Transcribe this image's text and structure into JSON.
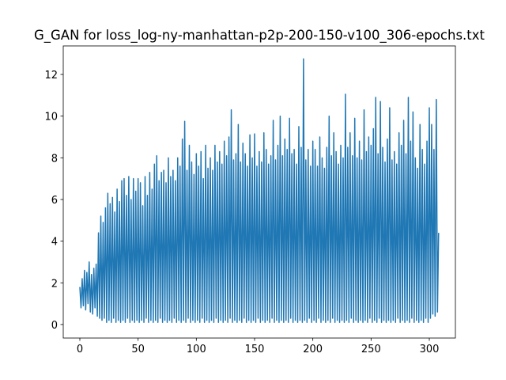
{
  "chart_data": {
    "type": "line",
    "title": "G_GAN for loss_log-ny-manhattan-p2p-200-150-v100_306-epochs.txt",
    "x": [
      0,
      1,
      2,
      3,
      4,
      5,
      6,
      7,
      8,
      9,
      10,
      11,
      12,
      13,
      14,
      15,
      16,
      17,
      18,
      19,
      20,
      21,
      22,
      23,
      24,
      25,
      26,
      27,
      28,
      29,
      30,
      31,
      32,
      33,
      34,
      35,
      36,
      37,
      38,
      39,
      40,
      41,
      42,
      43,
      44,
      45,
      46,
      47,
      48,
      49,
      50,
      51,
      52,
      53,
      54,
      55,
      56,
      57,
      58,
      59,
      60,
      61,
      62,
      63,
      64,
      65,
      66,
      67,
      68,
      69,
      70,
      71,
      72,
      73,
      74,
      75,
      76,
      77,
      78,
      79,
      80,
      81,
      82,
      83,
      84,
      85,
      86,
      87,
      88,
      89,
      90,
      91,
      92,
      93,
      94,
      95,
      96,
      97,
      98,
      99,
      100,
      101,
      102,
      103,
      104,
      105,
      106,
      107,
      108,
      109,
      110,
      111,
      112,
      113,
      114,
      115,
      116,
      117,
      118,
      119,
      120,
      121,
      122,
      123,
      124,
      125,
      126,
      127,
      128,
      129,
      130,
      131,
      132,
      133,
      134,
      135,
      136,
      137,
      138,
      139,
      140,
      141,
      142,
      143,
      144,
      145,
      146,
      147,
      148,
      149,
      150,
      151,
      152,
      153,
      154,
      155,
      156,
      157,
      158,
      159,
      160,
      161,
      162,
      163,
      164,
      165,
      166,
      167,
      168,
      169,
      170,
      171,
      172,
      173,
      174,
      175,
      176,
      177,
      178,
      179,
      180,
      181,
      182,
      183,
      184,
      185,
      186,
      187,
      188,
      189,
      190,
      191,
      192,
      193,
      194,
      195,
      196,
      197,
      198,
      199,
      200,
      201,
      202,
      203,
      204,
      205,
      206,
      207,
      208,
      209,
      210,
      211,
      212,
      213,
      214,
      215,
      216,
      217,
      218,
      219,
      220,
      221,
      222,
      223,
      224,
      225,
      226,
      227,
      228,
      229,
      230,
      231,
      232,
      233,
      234,
      235,
      236,
      237,
      238,
      239,
      240,
      241,
      242,
      243,
      244,
      245,
      246,
      247,
      248,
      249,
      250,
      251,
      252,
      253,
      254,
      255,
      256,
      257,
      258,
      259,
      260,
      261,
      262,
      263,
      264,
      265,
      266,
      267,
      268,
      269,
      270,
      271,
      272,
      273,
      274,
      275,
      276,
      277,
      278,
      279,
      280,
      281,
      282,
      283,
      284,
      285,
      286,
      287,
      288,
      289,
      290,
      291,
      292,
      293,
      294,
      295,
      296,
      297,
      298,
      299,
      300,
      301,
      302,
      303,
      304,
      305,
      306,
      307,
      308
    ],
    "series": [
      {
        "color": "#1f77b4",
        "values": [
          1.8,
          0.8,
          2.2,
          0.9,
          2.6,
          0.7,
          2.5,
          1.0,
          3.0,
          0.6,
          2.4,
          0.5,
          2.7,
          0.8,
          2.9,
          0.4,
          4.4,
          0.3,
          5.2,
          0.2,
          4.9,
          0.3,
          5.6,
          0.1,
          6.3,
          0.2,
          5.8,
          0.1,
          6.1,
          0.3,
          5.4,
          0.1,
          6.5,
          0.2,
          5.9,
          0.1,
          6.9,
          0.2,
          7.0,
          0.1,
          6.2,
          0.3,
          7.1,
          0.1,
          6.0,
          0.2,
          7.0,
          0.1,
          6.4,
          0.2,
          7.0,
          0.1,
          6.8,
          0.2,
          5.7,
          0.1,
          7.1,
          0.3,
          6.2,
          0.1,
          7.3,
          0.2,
          6.5,
          0.1,
          7.7,
          0.2,
          8.1,
          0.1,
          6.9,
          0.3,
          7.3,
          0.1,
          7.4,
          0.2,
          6.8,
          0.1,
          8.0,
          0.2,
          7.1,
          0.1,
          7.4,
          0.3,
          6.9,
          0.1,
          8.0,
          0.2,
          7.6,
          0.1,
          8.9,
          0.2,
          9.75,
          0.1,
          7.4,
          0.3,
          8.6,
          0.1,
          7.8,
          0.2,
          7.2,
          0.1,
          8.2,
          0.2,
          7.6,
          0.1,
          8.3,
          0.3,
          7.0,
          0.1,
          8.6,
          0.2,
          7.5,
          0.1,
          8.0,
          0.2,
          7.4,
          0.1,
          8.6,
          0.3,
          7.8,
          0.1,
          8.3,
          0.2,
          7.7,
          0.1,
          8.8,
          0.2,
          8.1,
          0.1,
          9.0,
          0.3,
          10.3,
          0.1,
          7.9,
          0.2,
          8.2,
          0.1,
          9.6,
          0.2,
          7.8,
          0.1,
          8.7,
          0.3,
          8.2,
          0.1,
          7.6,
          0.2,
          9.1,
          0.1,
          8.0,
          0.2,
          9.15,
          0.1,
          7.6,
          0.3,
          8.3,
          0.1,
          7.8,
          0.2,
          9.2,
          0.1,
          8.4,
          0.2,
          7.7,
          0.1,
          8.1,
          0.3,
          9.8,
          0.1,
          7.9,
          0.2,
          8.6,
          0.1,
          10.0,
          0.2,
          8.1,
          0.1,
          8.9,
          0.2,
          8.4,
          0.1,
          9.9,
          0.3,
          8.2,
          0.1,
          8.4,
          0.2,
          7.7,
          0.1,
          9.5,
          0.2,
          8.5,
          0.1,
          12.75,
          0.2,
          7.9,
          0.1,
          8.4,
          0.3,
          7.6,
          0.1,
          8.8,
          0.2,
          8.4,
          0.1,
          7.6,
          0.3,
          9.0,
          0.1,
          8.0,
          0.2,
          7.5,
          0.1,
          8.5,
          0.2,
          10.0,
          0.1,
          8.1,
          0.3,
          9.2,
          0.1,
          8.3,
          0.2,
          7.7,
          0.1,
          8.6,
          0.2,
          8.0,
          0.1,
          11.05,
          0.2,
          8.5,
          0.1,
          9.2,
          0.3,
          8.1,
          0.1,
          9.9,
          0.2,
          8.0,
          0.1,
          8.8,
          0.2,
          7.9,
          0.1,
          10.3,
          0.2,
          8.3,
          0.1,
          9.0,
          0.3,
          8.6,
          0.1,
          9.4,
          0.2,
          10.9,
          0.1,
          8.2,
          0.3,
          10.7,
          0.1,
          8.5,
          0.2,
          7.8,
          0.1,
          8.9,
          0.2,
          10.4,
          0.1,
          7.9,
          0.2,
          8.3,
          0.1,
          7.7,
          0.3,
          9.2,
          0.1,
          8.6,
          0.2,
          9.8,
          0.1,
          8.2,
          0.2,
          10.9,
          0.1,
          8.8,
          0.3,
          10.2,
          0.1,
          8.0,
          0.2,
          7.5,
          0.1,
          9.6,
          0.2,
          8.4,
          0.1,
          7.7,
          0.3,
          8.8,
          0.1,
          10.4,
          0.3,
          9.6,
          0.5,
          8.4,
          0.4,
          10.8,
          0.6,
          4.4
        ]
      }
    ],
    "xlim": [
      -14.25,
      322.4
    ],
    "xticks": [
      0,
      50,
      100,
      150,
      200,
      250,
      300
    ],
    "ylim": [
      -0.65,
      13.37
    ],
    "yticks": [
      0,
      2,
      4,
      6,
      8,
      10,
      12
    ],
    "grid": false
  }
}
